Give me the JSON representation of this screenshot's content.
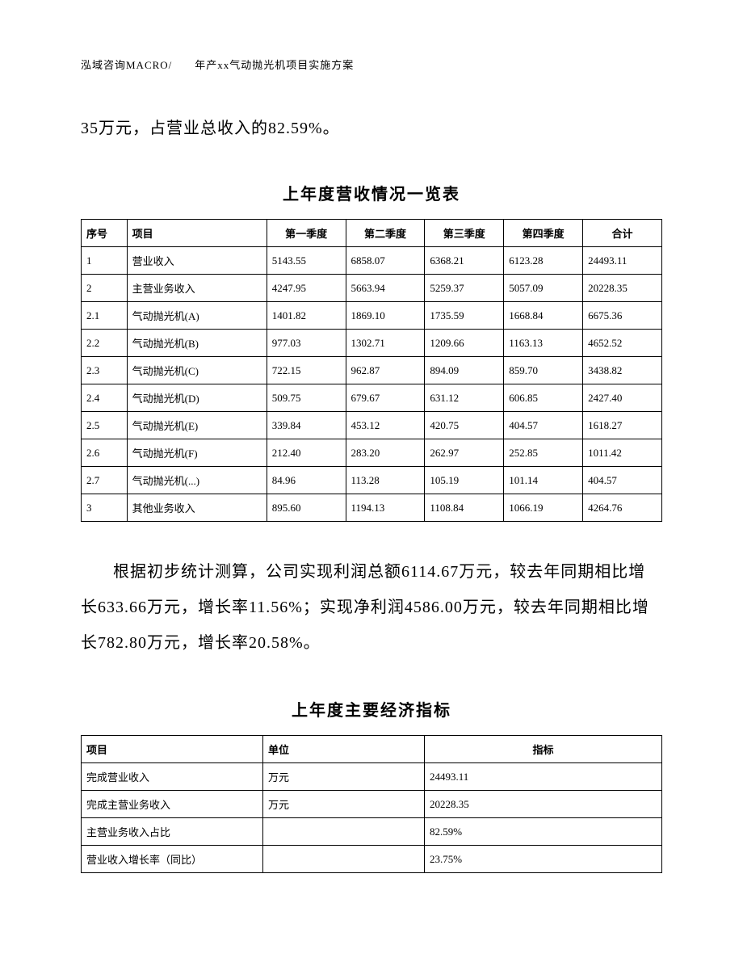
{
  "header": "泓域咨询MACRO/　　年产xx气动抛光机项目实施方案",
  "lead": "35万元，占营业总收入的82.59%。",
  "table1": {
    "title": "上年度营收情况一览表",
    "columns": [
      "序号",
      "项目",
      "第一季度",
      "第二季度",
      "第三季度",
      "第四季度",
      "合计"
    ],
    "rows": [
      [
        "1",
        "营业收入",
        "5143.55",
        "6858.07",
        "6368.21",
        "6123.28",
        "24493.11"
      ],
      [
        "2",
        "主营业务收入",
        "4247.95",
        "5663.94",
        "5259.37",
        "5057.09",
        "20228.35"
      ],
      [
        "2.1",
        "气动抛光机(A)",
        "1401.82",
        "1869.10",
        "1735.59",
        "1668.84",
        "6675.36"
      ],
      [
        "2.2",
        "气动抛光机(B)",
        "977.03",
        "1302.71",
        "1209.66",
        "1163.13",
        "4652.52"
      ],
      [
        "2.3",
        "气动抛光机(C)",
        "722.15",
        "962.87",
        "894.09",
        "859.70",
        "3438.82"
      ],
      [
        "2.4",
        "气动抛光机(D)",
        "509.75",
        "679.67",
        "631.12",
        "606.85",
        "2427.40"
      ],
      [
        "2.5",
        "气动抛光机(E)",
        "339.84",
        "453.12",
        "420.75",
        "404.57",
        "1618.27"
      ],
      [
        "2.6",
        "气动抛光机(F)",
        "212.40",
        "283.20",
        "262.97",
        "252.85",
        "1011.42"
      ],
      [
        "2.7",
        "气动抛光机(...)",
        "84.96",
        "113.28",
        "105.19",
        "101.14",
        "404.57"
      ],
      [
        "3",
        "其他业务收入",
        "895.60",
        "1194.13",
        "1108.84",
        "1066.19",
        "4264.76"
      ]
    ]
  },
  "paragraph": "根据初步统计测算，公司实现利润总额6114.67万元，较去年同期相比增长633.66万元，增长率11.56%；实现净利润4586.00万元，较去年同期相比增长782.80万元，增长率20.58%。",
  "table2": {
    "title": "上年度主要经济指标",
    "columns": [
      "项目",
      "单位",
      "指标"
    ],
    "rows": [
      [
        "完成营业收入",
        "万元",
        "24493.11"
      ],
      [
        "完成主营业务收入",
        "万元",
        "20228.35"
      ],
      [
        "主营业务收入占比",
        "",
        "82.59%"
      ],
      [
        "营业收入增长率（同比）",
        "",
        "23.75%"
      ]
    ]
  }
}
